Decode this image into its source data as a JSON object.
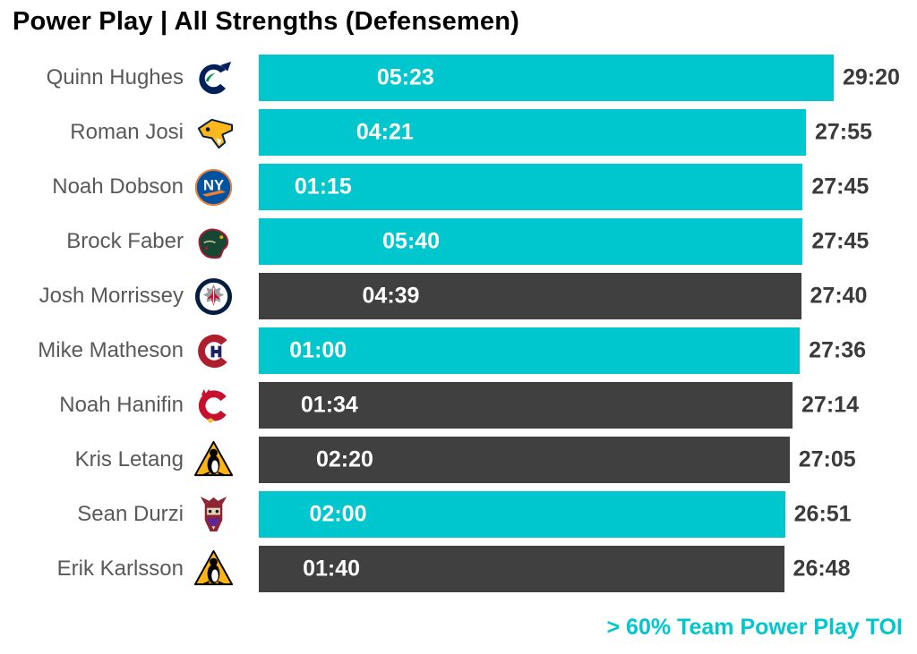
{
  "title": "Power Play | All Strengths (Defensemen)",
  "footer": {
    "legend_note": "> 60% Team Power Play TOI"
  },
  "colors": {
    "highlight_bar": "#00C7CE",
    "default_bar": "#404040",
    "title_text": "#000000",
    "player_name_text": "#595959",
    "toi_value_text": "#3B3B3B",
    "bar_inner_label_text": "#FFFFFF"
  },
  "chart_data": {
    "type": "bar",
    "orientation": "horizontal",
    "title": "Power Play | All Strengths (Defensemen)",
    "x_max_seconds": 1760,
    "grid": false,
    "legend_note": "> 60% Team Power Play TOI",
    "bar_inner_label": "Power Play TOI (MM:SS)",
    "bar_end_label": "All Strengths TOI (MM:SS)",
    "rows": [
      {
        "player": "Quinn Hughes",
        "team": "Vancouver Canucks",
        "team_id": "canucks",
        "pp_toi": "05:23",
        "pp_seconds": 323,
        "total_toi": "29:20",
        "toi_seconds": 1760,
        "highlighted": true
      },
      {
        "player": "Roman Josi",
        "team": "Nashville Predators",
        "team_id": "predators",
        "pp_toi": "04:21",
        "pp_seconds": 261,
        "total_toi": "27:55",
        "toi_seconds": 1675,
        "highlighted": true
      },
      {
        "player": "Noah Dobson",
        "team": "New York Islanders",
        "team_id": "islanders",
        "pp_toi": "01:15",
        "pp_seconds": 75,
        "total_toi": "27:45",
        "toi_seconds": 1665,
        "highlighted": true
      },
      {
        "player": "Brock Faber",
        "team": "Minnesota Wild",
        "team_id": "wild",
        "pp_toi": "05:40",
        "pp_seconds": 340,
        "total_toi": "27:45",
        "toi_seconds": 1665,
        "highlighted": true
      },
      {
        "player": "Josh Morrissey",
        "team": "Winnipeg Jets",
        "team_id": "jets",
        "pp_toi": "04:39",
        "pp_seconds": 279,
        "total_toi": "27:40",
        "toi_seconds": 1660,
        "highlighted": false
      },
      {
        "player": "Mike Matheson",
        "team": "Montreal Canadiens",
        "team_id": "canadiens",
        "pp_toi": "01:00",
        "pp_seconds": 60,
        "total_toi": "27:36",
        "toi_seconds": 1656,
        "highlighted": true
      },
      {
        "player": "Noah Hanifin",
        "team": "Calgary Flames",
        "team_id": "flames",
        "pp_toi": "01:34",
        "pp_seconds": 94,
        "total_toi": "27:14",
        "toi_seconds": 1634,
        "highlighted": false
      },
      {
        "player": "Kris Letang",
        "team": "Pittsburgh Penguins",
        "team_id": "penguins",
        "pp_toi": "02:20",
        "pp_seconds": 140,
        "total_toi": "27:05",
        "toi_seconds": 1625,
        "highlighted": false
      },
      {
        "player": "Sean Durzi",
        "team": "Arizona Coyotes",
        "team_id": "coyotes",
        "pp_toi": "02:00",
        "pp_seconds": 120,
        "total_toi": "26:51",
        "toi_seconds": 1611,
        "highlighted": true
      },
      {
        "player": "Erik Karlsson",
        "team": "Pittsburgh Penguins",
        "team_id": "penguins",
        "pp_toi": "01:40",
        "pp_seconds": 100,
        "total_toi": "26:48",
        "toi_seconds": 1608,
        "highlighted": false
      }
    ]
  }
}
